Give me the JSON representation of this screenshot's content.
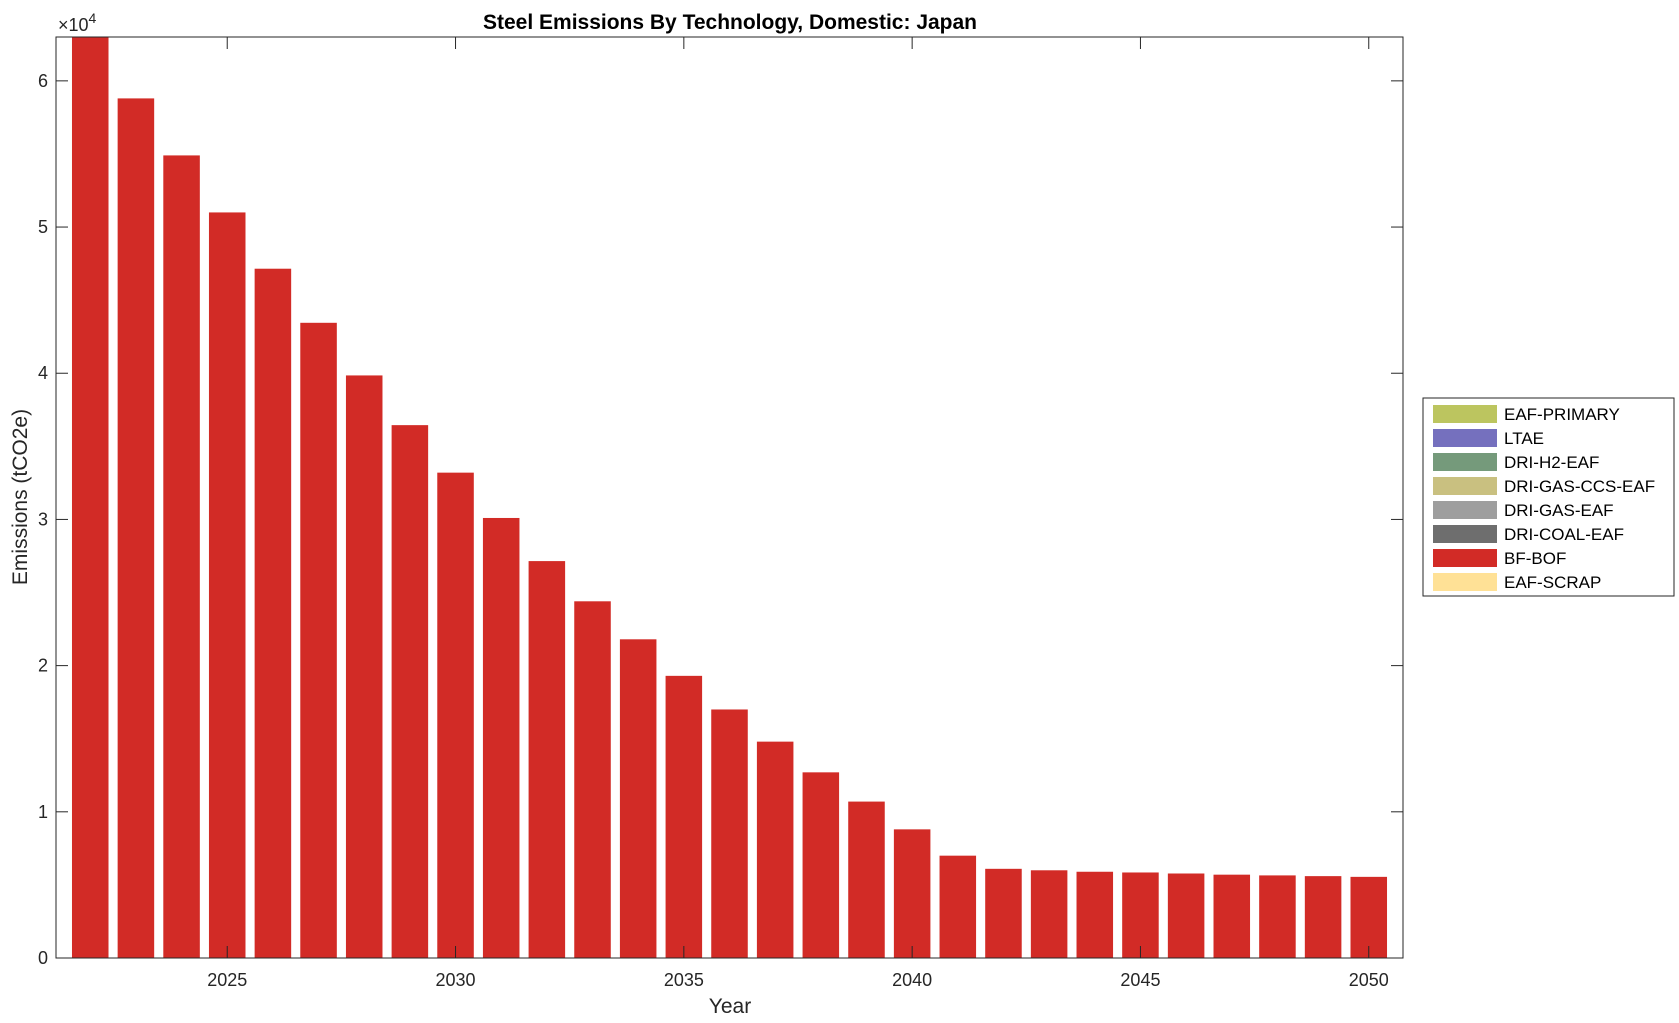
{
  "chart_data": {
    "type": "bar",
    "stacked": true,
    "title": "Steel Emissions By Technology, Domestic: Japan",
    "xlabel": "Year",
    "ylabel": "Emissions (tCO2e)",
    "y_exponent_label": "×10",
    "y_exponent_power": "4",
    "x": [
      2022,
      2023,
      2024,
      2025,
      2026,
      2027,
      2028,
      2029,
      2030,
      2031,
      2032,
      2033,
      2034,
      2035,
      2036,
      2037,
      2038,
      2039,
      2040,
      2041,
      2042,
      2043,
      2044,
      2045,
      2046,
      2047,
      2048,
      2049,
      2050
    ],
    "xlim": [
      2021.25,
      2050.75
    ],
    "xticks": [
      2025,
      2030,
      2035,
      2040,
      2045,
      2050
    ],
    "ylim": [
      0,
      63000
    ],
    "yticks": [
      0,
      10000,
      20000,
      30000,
      40000,
      50000,
      60000
    ],
    "ytick_labels": [
      "0",
      "1",
      "2",
      "3",
      "4",
      "5",
      "6"
    ],
    "grid": false,
    "legend_position": "outside-right",
    "series": [
      {
        "name": "EAF-PRIMARY",
        "color": "#BCC55F",
        "values": [
          0,
          0,
          0,
          0,
          0,
          0,
          0,
          0,
          0,
          0,
          0,
          0,
          0,
          0,
          0,
          0,
          0,
          0,
          0,
          0,
          0,
          0,
          0,
          0,
          0,
          0,
          0,
          0,
          0
        ]
      },
      {
        "name": "LTAE",
        "color": "#7570BE",
        "values": [
          0,
          0,
          0,
          0,
          0,
          0,
          0,
          0,
          0,
          0,
          0,
          0,
          0,
          0,
          0,
          0,
          0,
          0,
          0,
          0,
          0,
          0,
          0,
          0,
          0,
          0,
          0,
          0,
          0
        ]
      },
      {
        "name": "DRI-H2-EAF",
        "color": "#759A7B",
        "values": [
          0,
          0,
          0,
          0,
          0,
          0,
          0,
          0,
          0,
          0,
          0,
          0,
          0,
          0,
          0,
          0,
          0,
          0,
          0,
          0,
          0,
          0,
          0,
          0,
          0,
          0,
          0,
          0,
          0
        ]
      },
      {
        "name": "DRI-GAS-CCS-EAF",
        "color": "#C9C080",
        "values": [
          0,
          0,
          0,
          0,
          0,
          0,
          0,
          0,
          0,
          0,
          0,
          0,
          0,
          0,
          0,
          0,
          0,
          0,
          0,
          0,
          0,
          0,
          0,
          0,
          0,
          0,
          0,
          0,
          0
        ]
      },
      {
        "name": "DRI-GAS-EAF",
        "color": "#9E9E9E",
        "values": [
          0,
          0,
          0,
          0,
          0,
          0,
          0,
          0,
          0,
          0,
          0,
          0,
          0,
          0,
          0,
          0,
          0,
          0,
          0,
          0,
          0,
          0,
          0,
          0,
          0,
          0,
          0,
          0,
          0
        ]
      },
      {
        "name": "DRI-COAL-EAF",
        "color": "#6E6E6E",
        "values": [
          0,
          0,
          0,
          0,
          0,
          0,
          0,
          0,
          0,
          0,
          0,
          0,
          0,
          0,
          0,
          0,
          0,
          0,
          0,
          0,
          0,
          0,
          0,
          0,
          0,
          0,
          0,
          0,
          0
        ]
      },
      {
        "name": "BF-BOF",
        "color": "#D22B26",
        "values": [
          63000,
          58800,
          54900,
          51000,
          47150,
          43450,
          39850,
          36450,
          33200,
          30100,
          27150,
          24400,
          21800,
          19300,
          17000,
          14800,
          12700,
          10700,
          8800,
          7000,
          6100,
          6000,
          5900,
          5850,
          5780,
          5700,
          5650,
          5600,
          5550
        ]
      },
      {
        "name": "EAF-SCRAP",
        "color": "#FFE196",
        "values": [
          0,
          0,
          0,
          0,
          0,
          0,
          0,
          0,
          0,
          0,
          0,
          0,
          0,
          0,
          0,
          0,
          0,
          0,
          0,
          0,
          0,
          0,
          0,
          0,
          0,
          0,
          0,
          0,
          0
        ]
      }
    ]
  }
}
